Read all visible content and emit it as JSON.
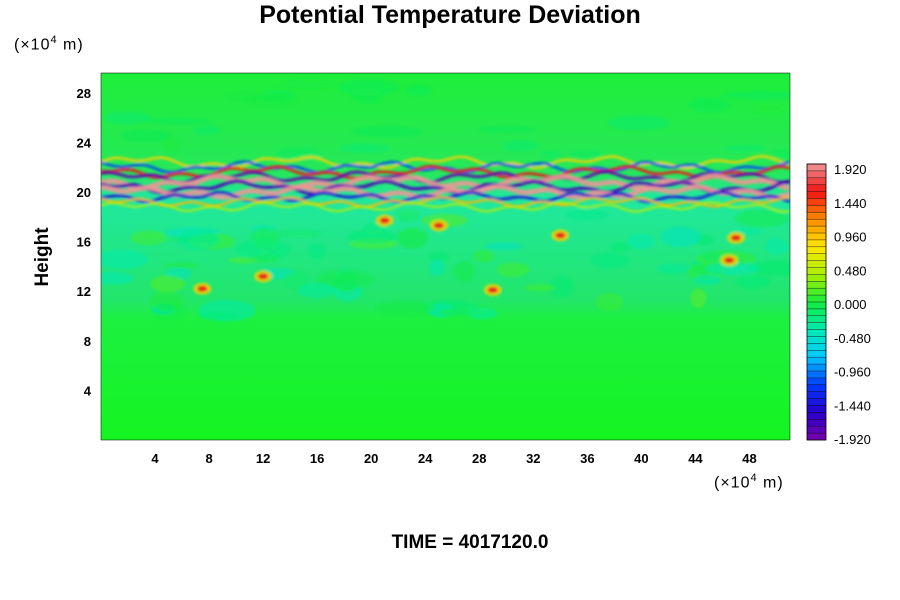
{
  "chart_data": {
    "type": "heatmap",
    "title": "Potential Temperature Deviation",
    "ylabel": "Height",
    "x_unit": "(×10",
    "x_unit_exp": "4",
    "x_unit_suffix": " m)",
    "y_unit": "(×10",
    "y_unit_exp": "4",
    "y_unit_suffix": " m)",
    "x_ticks": [
      4,
      8,
      12,
      16,
      20,
      24,
      28,
      32,
      36,
      40,
      44,
      48
    ],
    "y_ticks": [
      4,
      8,
      12,
      16,
      20,
      24,
      28
    ],
    "xlim": [
      0,
      51
    ],
    "ylim": [
      0,
      29.6
    ],
    "colorbar": {
      "labels": [
        "1.920",
        "1.440",
        "0.960",
        "0.480",
        "0.000",
        "-0.480",
        "-0.960",
        "-1.440",
        "-1.920"
      ],
      "range": [
        -2.0,
        2.0
      ]
    },
    "footer": "TIME = 4017120.0"
  }
}
